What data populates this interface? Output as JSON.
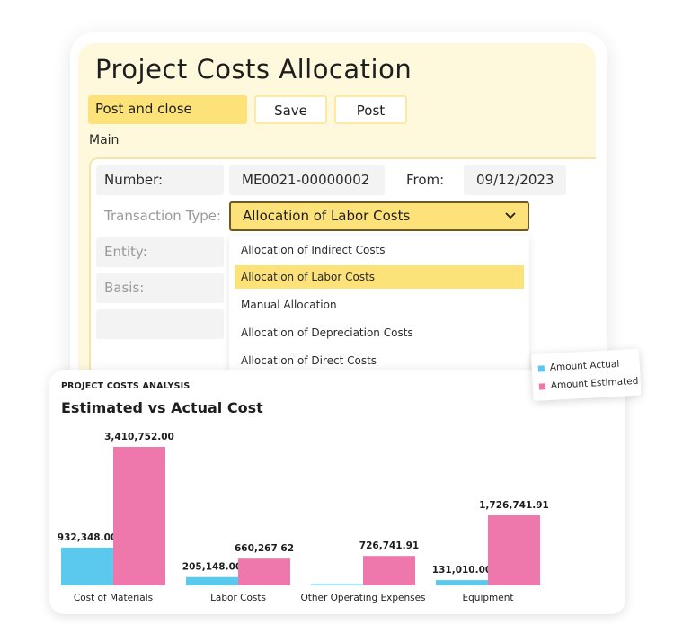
{
  "form": {
    "title": "Project Costs Allocation",
    "buttons": {
      "post_and_close": "Post and close",
      "save": "Save",
      "post": "Post"
    },
    "section": "Main",
    "fields": {
      "number_label": "Number:",
      "number_value": "ME0021-00000002",
      "from_label": "From:",
      "from_value": "09/12/2023",
      "transaction_type_label": "Transaction Type:",
      "transaction_type_value": "Allocation of Labor Costs",
      "entity_label": "Entity:",
      "basis_label": "Basis:"
    },
    "dropdown": {
      "options": [
        "Allocation of Indirect Costs",
        "Allocation of Labor Costs",
        "Manual Allocation",
        "Allocation of Depreciation Costs",
        "Allocation of Direct Costs"
      ],
      "selected_index": 1
    },
    "accent_color": "#fde27a",
    "background_color": "#fef9dd",
    "icons": {
      "select_chevron": "chevron-down-icon"
    }
  },
  "chart": {
    "kicker": "PROJECT COSTS ANALYSIS",
    "title": "Estimated vs Actual Cost",
    "legend": [
      {
        "label": "Amount Actual",
        "color": "#5bc8ee"
      },
      {
        "label": "Amount Estimated",
        "color": "#ee77ab"
      }
    ]
  },
  "chart_data": {
    "type": "bar",
    "title": "Estimated vs Actual Cost",
    "categories": [
      "Cost of Materials",
      "Labor Costs",
      "Other Operating Expenses",
      "Equipment"
    ],
    "series": [
      {
        "name": "Amount Actual",
        "color": "#5bc8ee",
        "values": [
          932348.0,
          205148.0,
          8000,
          131010.0
        ],
        "labels": [
          "932,348.00",
          "205,148.00",
          "",
          "131,010.00"
        ]
      },
      {
        "name": "Amount Estimated",
        "color": "#ee77ab",
        "values": [
          3410752.0,
          660267.62,
          726741.91,
          1726741.91
        ],
        "labels": [
          "3,410,752.00",
          "660,267 62",
          "726,741.91",
          "1,726,741.91"
        ]
      }
    ],
    "ylim": [
      0,
      3410752
    ],
    "grid": false,
    "legend_position": "top-right",
    "xlabel": "",
    "ylabel": ""
  }
}
